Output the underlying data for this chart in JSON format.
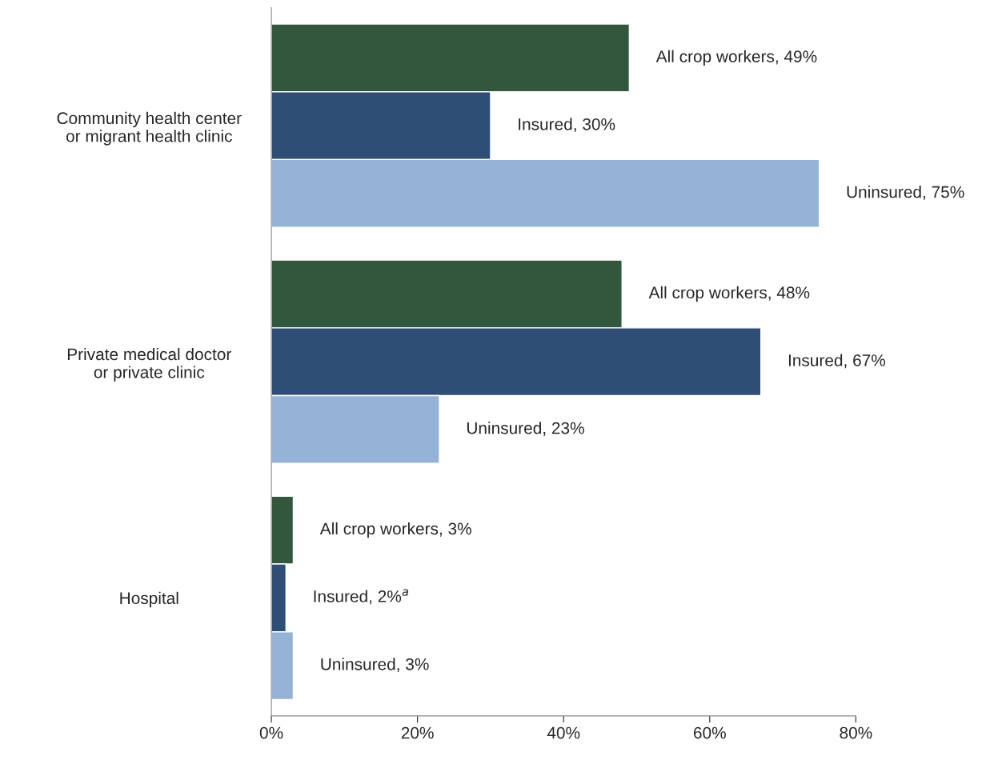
{
  "chart_data": {
    "type": "bar",
    "orientation": "horizontal",
    "categories": [
      "Community health center\nor migrant health clinic",
      "Private medical doctor\nor private clinic",
      "Hospital"
    ],
    "series": [
      {
        "color": "#33573d",
        "values": [
          49,
          48,
          3
        ],
        "value_labels": [
          "All crop workers, 49%",
          "All crop workers, 48%",
          "All crop workers, 3%"
        ]
      },
      {
        "color": "#2e4e75",
        "values": [
          30,
          67,
          2
        ],
        "value_labels": [
          "Insured, 30%",
          "Insured, 67%",
          "Insured, 2%$^{a}$"
        ]
      },
      {
        "color": "#95b3d7",
        "values": [
          75,
          23,
          3
        ],
        "value_labels": [
          "Uninsured, 75%",
          "Uninsured, 23%",
          "Uninsured, 3%"
        ]
      }
    ],
    "xlim": [
      0,
      80
    ],
    "xticks": [
      {
        "value": 0,
        "label": "0%"
      },
      {
        "value": 20,
        "label": "20%"
      },
      {
        "value": 40,
        "label": "40%"
      },
      {
        "value": 60,
        "label": "60%"
      },
      {
        "value": 80,
        "label": "80%"
      }
    ],
    "grid": false,
    "legend": false
  }
}
